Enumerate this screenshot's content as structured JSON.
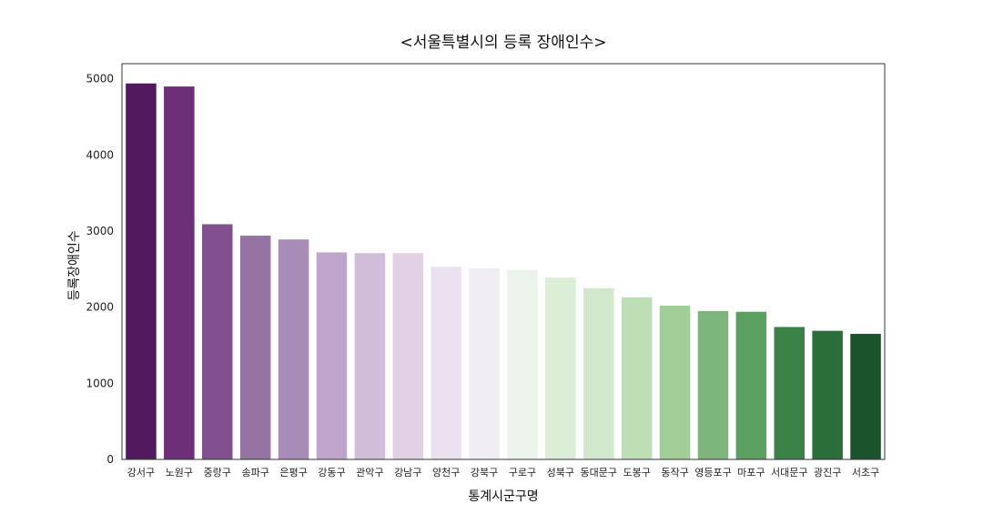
{
  "chart_data": {
    "type": "bar",
    "title": "<서울특별시의 등록 장애인수>",
    "xlabel": "통계시군구명",
    "ylabel": "등록장애인수",
    "ylim": [
      0,
      5200
    ],
    "yticks": [
      0,
      1000,
      2000,
      3000,
      4000,
      5000
    ],
    "grid": false,
    "categories": [
      "강서구",
      "노원구",
      "중랑구",
      "송파구",
      "은평구",
      "강동구",
      "관악구",
      "강남구",
      "양천구",
      "강북구",
      "구로구",
      "성북구",
      "동대문구",
      "도봉구",
      "동작구",
      "영등포구",
      "마포구",
      "서대문구",
      "광진구",
      "서초구"
    ],
    "values": [
      4940,
      4900,
      3090,
      2940,
      2890,
      2720,
      2710,
      2710,
      2530,
      2510,
      2490,
      2390,
      2250,
      2130,
      2020,
      1950,
      1940,
      1740,
      1690,
      1650
    ],
    "colors": [
      "#521a5e",
      "#6c2f78",
      "#82508f",
      "#9573a3",
      "#a98bb8",
      "#bfa5cb",
      "#d1bdd9",
      "#e2d1e5",
      "#ece1ef",
      "#f0eef3",
      "#ebf4ea",
      "#dbefd7",
      "#d2e8cc",
      "#bddfb6",
      "#a1ce97",
      "#7eb57c",
      "#5b9f61",
      "#3b8249",
      "#2a6f39",
      "#1b542c"
    ]
  }
}
